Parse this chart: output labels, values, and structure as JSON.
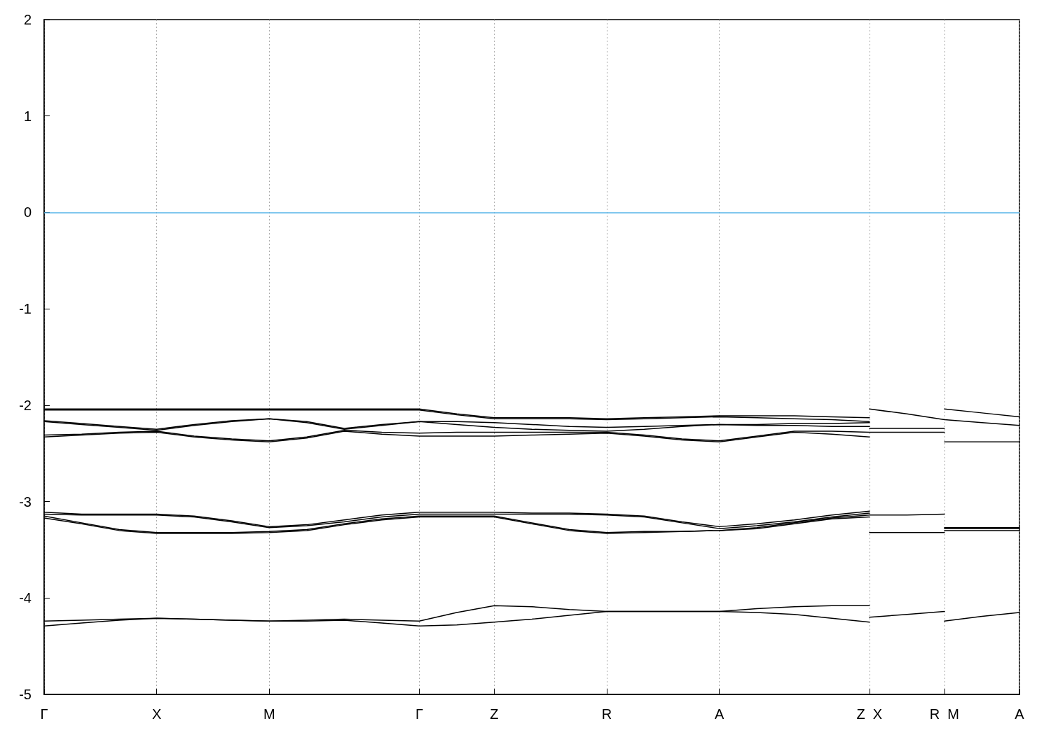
{
  "chart_data": {
    "type": "line",
    "categories": [
      "Γ",
      null,
      null,
      "X",
      null,
      null,
      "M",
      null,
      null,
      null,
      "Γ",
      null,
      "Z",
      null,
      null,
      "R",
      null,
      null,
      "A",
      null,
      null,
      null,
      "Z  X",
      null,
      "R  M",
      null,
      "A"
    ],
    "ylim": [
      -5,
      2
    ],
    "yticks": [
      -5,
      -4,
      -3,
      -2,
      -1,
      0,
      1,
      2
    ],
    "grid": "x",
    "marker": "none",
    "line_style": "solid",
    "ref_lines": [
      {
        "axis": "y",
        "value": 0,
        "color": "#56b4e9"
      }
    ],
    "series": [
      {
        "color": "#000000",
        "values": [
          -4.29,
          -4.26,
          -4.23,
          -4.21,
          -4.22,
          -4.23,
          -4.24,
          -4.24,
          -4.23,
          -4.26,
          -4.29,
          -4.28,
          -4.25,
          -4.22,
          -4.18,
          -4.14,
          -4.14,
          -4.14,
          -4.14,
          -4.15,
          -4.17,
          -4.21,
          -4.25,
          null,
          null,
          null,
          null
        ]
      },
      {
        "color": "#000000",
        "values": [
          null,
          null,
          null,
          null,
          null,
          null,
          null,
          null,
          null,
          null,
          null,
          null,
          null,
          null,
          null,
          null,
          null,
          null,
          null,
          null,
          null,
          null,
          -4.2,
          -4.17,
          -4.14,
          null,
          null
        ]
      },
      {
        "color": "#000000",
        "values": [
          null,
          null,
          null,
          null,
          null,
          null,
          null,
          null,
          null,
          null,
          null,
          null,
          null,
          null,
          null,
          null,
          null,
          null,
          null,
          null,
          null,
          null,
          null,
          null,
          -4.24,
          -4.19,
          -4.15
        ]
      },
      {
        "color": "#000000",
        "values": [
          -4.24,
          -4.23,
          -4.22,
          -4.21,
          -4.22,
          -4.23,
          -4.24,
          -4.23,
          -4.22,
          -4.23,
          -4.24,
          -4.15,
          -4.08,
          -4.09,
          -4.12,
          -4.14,
          -4.14,
          -4.14,
          -4.14,
          -4.11,
          -4.09,
          -4.08,
          -4.08,
          null,
          null,
          null,
          null
        ]
      },
      {
        "color": "#000000",
        "values": [
          -3.11,
          -3.13,
          -3.13,
          -3.13,
          -3.15,
          -3.2,
          -3.26,
          -3.24,
          -3.19,
          -3.14,
          -3.11,
          -3.11,
          -3.11,
          -3.12,
          -3.12,
          -3.13,
          -3.15,
          -3.21,
          -3.26,
          -3.23,
          -3.19,
          -3.14,
          -3.1,
          null,
          null,
          null,
          null
        ]
      },
      {
        "color": "#000000",
        "values": [
          null,
          null,
          null,
          null,
          null,
          null,
          null,
          null,
          null,
          null,
          null,
          null,
          null,
          null,
          null,
          null,
          null,
          null,
          null,
          null,
          null,
          null,
          null,
          null,
          -3.27,
          -3.27,
          -3.27
        ]
      },
      {
        "color": "#000000",
        "values": [
          -3.13,
          -3.14,
          -3.14,
          -3.14,
          -3.16,
          -3.21,
          -3.27,
          -3.25,
          -3.21,
          -3.16,
          -3.13,
          -3.13,
          -3.13,
          -3.13,
          -3.13,
          -3.14,
          -3.16,
          -3.22,
          -3.28,
          -3.25,
          -3.21,
          -3.16,
          -3.12,
          null,
          null,
          null,
          null
        ]
      },
      {
        "color": "#000000",
        "values": [
          null,
          null,
          null,
          null,
          null,
          null,
          null,
          null,
          null,
          null,
          null,
          null,
          null,
          null,
          null,
          null,
          null,
          null,
          null,
          null,
          null,
          null,
          null,
          null,
          -3.28,
          -3.28,
          -3.28
        ]
      },
      {
        "color": "#000000",
        "values": [
          -3.15,
          -3.22,
          -3.29,
          -3.32,
          -3.32,
          -3.32,
          -3.31,
          -3.29,
          -3.23,
          -3.18,
          -3.15,
          -3.15,
          -3.15,
          -3.22,
          -3.29,
          -3.32,
          -3.31,
          -3.31,
          -3.3,
          -3.27,
          -3.22,
          -3.17,
          -3.14,
          -3.14,
          -3.13,
          null,
          null
        ]
      },
      {
        "color": "#000000",
        "values": [
          null,
          null,
          null,
          null,
          null,
          null,
          null,
          null,
          null,
          null,
          null,
          null,
          null,
          null,
          null,
          null,
          null,
          null,
          null,
          null,
          null,
          null,
          -3.32,
          -3.32,
          -3.32,
          null,
          null
        ]
      },
      {
        "color": "#000000",
        "values": [
          null,
          null,
          null,
          null,
          null,
          null,
          null,
          null,
          null,
          null,
          null,
          null,
          null,
          null,
          null,
          null,
          null,
          null,
          null,
          null,
          null,
          null,
          null,
          null,
          -3.3,
          -3.3,
          -3.3
        ]
      },
      {
        "color": "#000000",
        "values": [
          -3.17,
          -3.23,
          -3.3,
          -3.33,
          -3.33,
          -3.33,
          -3.32,
          -3.3,
          -3.24,
          -3.19,
          -3.16,
          -3.16,
          -3.16,
          -3.23,
          -3.3,
          -3.33,
          -3.32,
          -3.31,
          -3.3,
          -3.28,
          -3.23,
          -3.18,
          -3.16,
          null,
          null,
          null,
          null
        ]
      },
      {
        "color": "#000000",
        "values": [
          -2.04,
          -2.04,
          -2.04,
          -2.04,
          -2.04,
          -2.04,
          -2.04,
          -2.04,
          -2.04,
          -2.04,
          -2.04,
          -2.09,
          -2.13,
          -2.13,
          -2.13,
          -2.14,
          -2.13,
          -2.12,
          -2.11,
          -2.11,
          -2.11,
          -2.12,
          -2.13,
          null,
          null,
          null,
          null
        ]
      },
      {
        "color": "#000000",
        "values": [
          null,
          null,
          null,
          null,
          null,
          null,
          null,
          null,
          null,
          null,
          null,
          null,
          null,
          null,
          null,
          null,
          null,
          null,
          null,
          null,
          null,
          null,
          -2.04,
          -2.09,
          -2.15,
          -2.18,
          -2.21
        ]
      },
      {
        "color": "#000000",
        "values": [
          null,
          null,
          null,
          null,
          null,
          null,
          null,
          null,
          null,
          null,
          null,
          null,
          null,
          null,
          null,
          null,
          null,
          null,
          null,
          null,
          null,
          null,
          null,
          null,
          -2.04,
          -2.08,
          -2.12
        ]
      },
      {
        "color": "#000000",
        "values": [
          -2.05,
          -2.05,
          -2.05,
          -2.05,
          -2.05,
          -2.05,
          -2.05,
          -2.05,
          -2.05,
          -2.05,
          -2.05,
          -2.1,
          -2.14,
          -2.14,
          -2.14,
          -2.15,
          -2.14,
          -2.13,
          -2.12,
          -2.13,
          -2.14,
          -2.15,
          -2.17,
          null,
          null,
          null,
          null
        ]
      },
      {
        "color": "#000000",
        "values": [
          -2.16,
          -2.19,
          -2.22,
          -2.25,
          -2.2,
          -2.16,
          -2.14,
          -2.17,
          -2.24,
          -2.2,
          -2.17,
          -2.17,
          -2.18,
          -2.2,
          -2.22,
          -2.23,
          -2.22,
          -2.21,
          -2.2,
          -2.2,
          -2.19,
          -2.19,
          -2.18,
          null,
          null,
          null,
          null
        ]
      },
      {
        "color": "#000000",
        "values": [
          null,
          null,
          null,
          null,
          null,
          null,
          null,
          null,
          null,
          null,
          null,
          null,
          null,
          null,
          null,
          null,
          null,
          null,
          null,
          null,
          null,
          null,
          -2.24,
          -2.24,
          -2.24,
          null,
          null
        ]
      },
      {
        "color": "#000000",
        "values": [
          -2.17,
          -2.2,
          -2.23,
          -2.26,
          -2.21,
          -2.17,
          -2.14,
          -2.18,
          -2.25,
          -2.21,
          -2.17,
          -2.2,
          -2.23,
          -2.25,
          -2.26,
          -2.27,
          -2.25,
          -2.22,
          -2.2,
          -2.21,
          -2.21,
          -2.22,
          -2.22,
          null,
          null,
          null,
          null
        ]
      },
      {
        "color": "#000000",
        "values": [
          -2.31,
          -2.3,
          -2.28,
          -2.27,
          -2.32,
          -2.35,
          -2.37,
          -2.33,
          -2.26,
          -2.28,
          -2.29,
          -2.28,
          -2.28,
          -2.28,
          -2.28,
          -2.28,
          -2.31,
          -2.35,
          -2.37,
          -2.32,
          -2.27,
          -2.27,
          -2.28,
          -2.28,
          -2.28,
          null,
          null
        ]
      },
      {
        "color": "#000000",
        "values": [
          null,
          null,
          null,
          null,
          null,
          null,
          null,
          null,
          null,
          null,
          null,
          null,
          null,
          null,
          null,
          null,
          null,
          null,
          null,
          null,
          null,
          null,
          null,
          null,
          -2.38,
          -2.38,
          -2.38
        ]
      },
      {
        "color": "#000000",
        "values": [
          -2.33,
          -2.31,
          -2.29,
          -2.28,
          -2.33,
          -2.36,
          -2.38,
          -2.34,
          -2.27,
          -2.3,
          -2.32,
          -2.32,
          -2.32,
          -2.31,
          -2.3,
          -2.29,
          -2.32,
          -2.36,
          -2.38,
          -2.33,
          -2.28,
          -2.3,
          -2.33,
          null,
          null,
          null,
          null
        ]
      }
    ]
  }
}
